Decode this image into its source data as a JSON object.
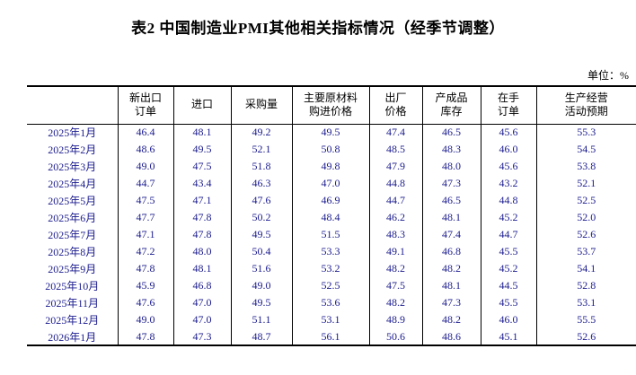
{
  "title": "表2 中国制造业PMI其他相关指标情况（经季节调整）",
  "unit_label": "单位：%",
  "colors": {
    "data_text": "#1b1b8e",
    "header_text": "#000000",
    "border": "#000000"
  },
  "table": {
    "headers": [
      "",
      "新出口\n订单",
      "进口",
      "采购量",
      "主要原材料\n购进价格",
      "出厂\n价格",
      "产成品\n库存",
      "在手\n订单",
      "生产经营\n活动预期"
    ],
    "rows": [
      {
        "label": "2025年1月",
        "values": [
          "46.4",
          "48.1",
          "49.2",
          "49.5",
          "47.4",
          "46.5",
          "45.6",
          "55.3"
        ]
      },
      {
        "label": "2025年2月",
        "values": [
          "48.6",
          "49.5",
          "52.1",
          "50.8",
          "48.5",
          "48.3",
          "46.0",
          "54.5"
        ]
      },
      {
        "label": "2025年3月",
        "values": [
          "49.0",
          "47.5",
          "51.8",
          "49.8",
          "47.9",
          "48.0",
          "45.6",
          "53.8"
        ]
      },
      {
        "label": "2025年4月",
        "values": [
          "44.7",
          "43.4",
          "46.3",
          "47.0",
          "44.8",
          "47.3",
          "43.2",
          "52.1"
        ]
      },
      {
        "label": "2025年5月",
        "values": [
          "47.5",
          "47.1",
          "47.6",
          "46.9",
          "44.7",
          "46.5",
          "44.8",
          "52.5"
        ]
      },
      {
        "label": "2025年6月",
        "values": [
          "47.7",
          "47.8",
          "50.2",
          "48.4",
          "46.2",
          "48.1",
          "45.2",
          "52.0"
        ]
      },
      {
        "label": "2025年7月",
        "values": [
          "47.1",
          "47.8",
          "49.5",
          "51.5",
          "48.3",
          "47.4",
          "44.7",
          "52.6"
        ]
      },
      {
        "label": "2025年8月",
        "values": [
          "47.2",
          "48.0",
          "50.4",
          "53.3",
          "49.1",
          "46.8",
          "45.5",
          "53.7"
        ]
      },
      {
        "label": "2025年9月",
        "values": [
          "47.8",
          "48.1",
          "51.6",
          "53.2",
          "48.2",
          "48.2",
          "45.2",
          "54.1"
        ]
      },
      {
        "label": "2025年10月",
        "values": [
          "45.9",
          "46.8",
          "49.0",
          "52.5",
          "47.5",
          "48.1",
          "44.5",
          "52.8"
        ]
      },
      {
        "label": "2025年11月",
        "values": [
          "47.6",
          "47.0",
          "49.5",
          "53.6",
          "48.2",
          "47.3",
          "45.5",
          "53.1"
        ]
      },
      {
        "label": "2025年12月",
        "values": [
          "49.0",
          "47.0",
          "51.1",
          "53.1",
          "48.9",
          "48.2",
          "46.0",
          "55.5"
        ]
      },
      {
        "label": "2026年1月",
        "values": [
          "47.8",
          "47.3",
          "48.7",
          "56.1",
          "50.6",
          "48.6",
          "45.1",
          "52.6"
        ]
      }
    ]
  }
}
